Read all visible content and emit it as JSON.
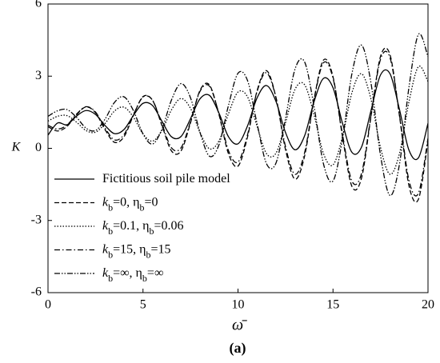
{
  "chart_data": {
    "type": "line",
    "x_label": "ω̄",
    "y_label": "K",
    "caption": "(a)",
    "xlim": [
      0,
      20
    ],
    "xticks": [
      0,
      5,
      10,
      15,
      20
    ],
    "ylim": [
      -6,
      6
    ],
    "yticks": [
      -6,
      -3,
      0,
      3,
      6
    ],
    "legend": "lower left",
    "x": [
      0,
      0.5,
      1,
      1.5,
      2,
      2.5,
      3,
      3.5,
      4,
      4.5,
      5,
      5.5,
      6,
      6.5,
      7,
      7.5,
      8,
      8.5,
      9,
      9.5,
      10,
      10.5,
      11,
      11.5,
      12,
      12.5,
      13,
      13.5,
      14,
      14.5,
      15,
      15.5,
      16,
      16.5,
      17,
      17.5,
      18,
      18.5,
      19,
      19.5,
      20
    ],
    "series": [
      {
        "name": "Fictitious soil pile model",
        "color": "#000000",
        "style": "solid",
        "values": [
          0.55,
          1.05,
          0.98,
          1.34,
          1.57,
          1.41,
          0.95,
          0.61,
          0.78,
          1.37,
          1.87,
          1.78,
          1.12,
          0.48,
          0.49,
          1.23,
          2.06,
          2.2,
          1.46,
          0.48,
          0.19,
          0.93,
          2.09,
          2.61,
          1.95,
          0.66,
          -0.06,
          0.51,
          1.93,
          2.91,
          2.52,
          1.04,
          -0.17,
          0.05,
          1.57,
          3.05,
          3.1,
          1.61,
          -0.08,
          -0.39,
          1.04
        ]
      },
      {
        "name": "kb=0, ηb=0",
        "color": "#000000",
        "style": "dashed",
        "values": [
          0.9,
          0.72,
          0.91,
          1.39,
          1.72,
          1.48,
          0.78,
          0.25,
          0.48,
          1.38,
          2.15,
          2.0,
          0.94,
          -0.11,
          -0.11,
          1.06,
          2.41,
          2.63,
          1.4,
          -0.23,
          -0.74,
          0.47,
          2.38,
          3.23,
          2.11,
          -0.05,
          -1.28,
          -0.34,
          2.03,
          3.67,
          2.98,
          0.48,
          -1.59,
          -1.24,
          1.33,
          3.82,
          3.89,
          1.34,
          -1.56,
          -2.11,
          0.32
        ]
      },
      {
        "name": "kb=0.1, ηb=0.06",
        "color": "#000000",
        "style": "dotted",
        "values": [
          1.13,
          1.33,
          1.36,
          1.09,
          0.74,
          0.67,
          1.03,
          1.55,
          1.71,
          1.29,
          0.6,
          0.3,
          0.75,
          1.6,
          2.07,
          1.66,
          0.66,
          -0.02,
          0.31,
          1.44,
          2.34,
          2.14,
          0.93,
          -0.22,
          -0.2,
          1.06,
          2.45,
          2.65,
          1.4,
          -0.22,
          -0.69,
          0.49,
          2.32,
          3.1,
          2.04,
          0.04,
          -1.08,
          -0.21,
          1.94,
          3.4,
          2.78
        ]
      },
      {
        "name": "kb=15, ηb=15",
        "color": "#000000",
        "style": "dashdot",
        "values": [
          0.96,
          0.8,
          0.97,
          1.42,
          1.73,
          1.51,
          0.85,
          0.35,
          0.57,
          1.41,
          2.13,
          2.0,
          1.0,
          0.02,
          0.02,
          1.11,
          2.37,
          2.58,
          1.43,
          -0.1,
          -0.57,
          0.56,
          2.35,
          3.14,
          2.1,
          0.07,
          -1.08,
          -0.2,
          2.02,
          3.56,
          2.92,
          0.57,
          -1.37,
          -1.05,
          1.36,
          3.7,
          3.77,
          1.38,
          -1.34,
          -1.86,
          0.42
        ]
      },
      {
        "name": "kb=∞, ηb=∞",
        "color": "#000000",
        "style": "dashdotdot",
        "values": [
          1.33,
          1.56,
          1.61,
          1.29,
          0.84,
          0.74,
          1.21,
          1.91,
          2.14,
          1.56,
          0.6,
          0.18,
          0.8,
          2.01,
          2.69,
          2.1,
          0.66,
          -0.33,
          0.15,
          1.79,
          3.12,
          2.82,
          1.04,
          -0.64,
          -0.61,
          1.24,
          3.29,
          3.6,
          1.75,
          -0.65,
          -1.36,
          0.4,
          3.12,
          4.29,
          2.71,
          -0.29,
          -1.96,
          -0.65,
          2.55,
          4.74,
          3.81
        ]
      }
    ]
  }
}
